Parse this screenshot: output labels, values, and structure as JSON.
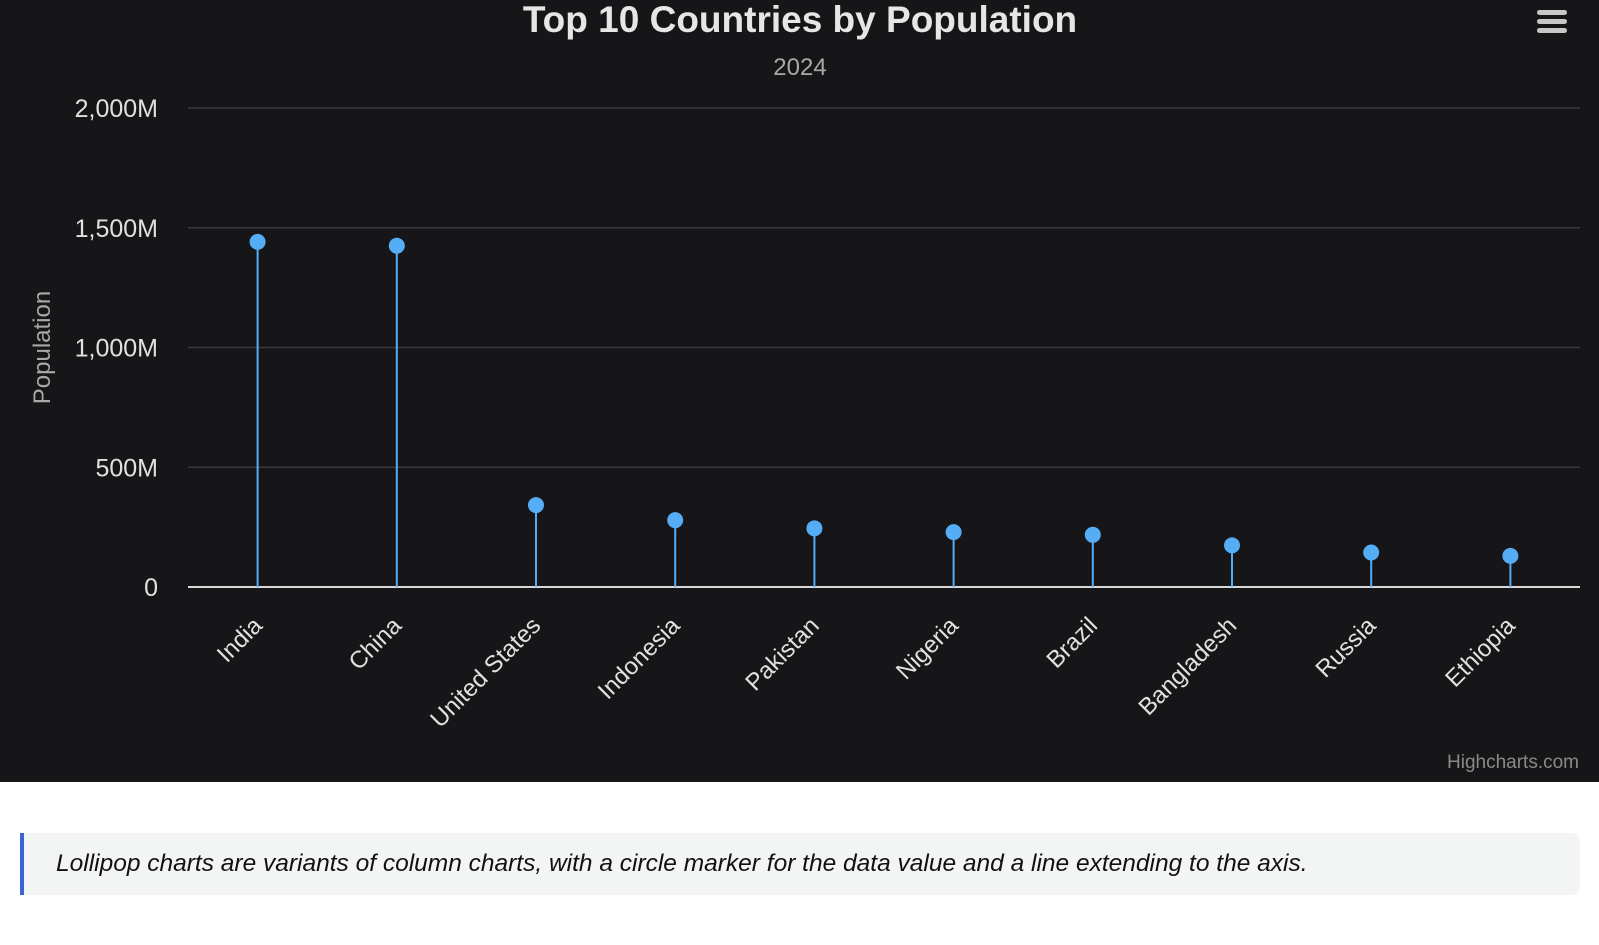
{
  "chart_data": {
    "type": "lollipop",
    "title": "Top 10 Countries by Population",
    "subtitle": "2024",
    "ylabel": "Population",
    "ylim": [
      0,
      2000
    ],
    "yticks": [
      0,
      500,
      1000,
      1500,
      2000
    ],
    "ytick_labels": [
      "0",
      "500M",
      "1,000M",
      "1,500M",
      "2,000M"
    ],
    "categories": [
      "India",
      "China",
      "United States",
      "Indonesia",
      "Pakistan",
      "Nigeria",
      "Brazil",
      "Bangladesh",
      "Russia",
      "Ethiopia"
    ],
    "values": [
      1441,
      1425,
      342,
      279,
      245,
      229,
      218,
      174,
      144,
      130
    ],
    "grid": true,
    "colors": {
      "marker": "#55adf5",
      "background": "#161618",
      "grid": "#3a3a3c",
      "axis": "#d8d8d8",
      "title": "#e6e6e6",
      "subtitle": "#a8a8a8",
      "label": "#e0e0e0"
    }
  },
  "menu": {
    "icon": "hamburger-menu-icon"
  },
  "credit": "Highcharts.com",
  "caption": "Lollipop charts are variants of column charts, with a circle marker for the data value and a line extending to the axis."
}
